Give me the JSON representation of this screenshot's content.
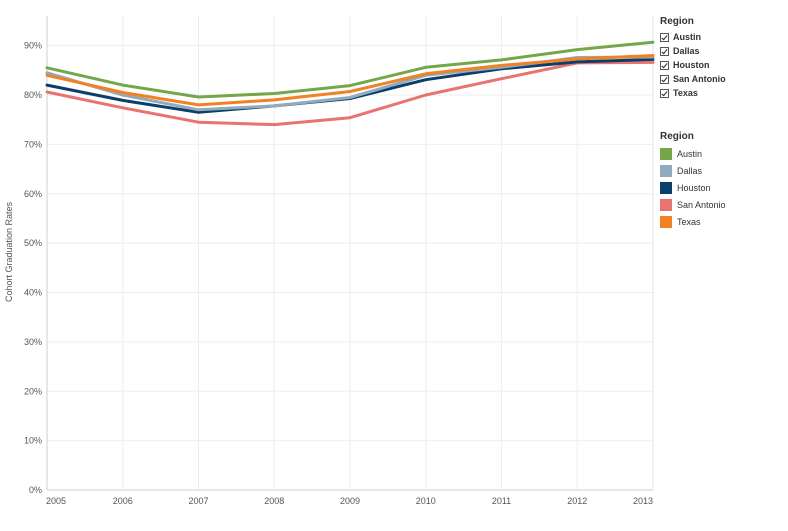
{
  "chart_data": {
    "type": "line",
    "title": "",
    "xlabel": "",
    "ylabel": "Cohort Graduation Rates",
    "x": [
      "2005",
      "2006",
      "2007",
      "2008",
      "2009",
      "2010",
      "2011",
      "2012",
      "2013"
    ],
    "ylim": [
      0,
      0.96
    ],
    "yticks": [
      0,
      0.1,
      0.2,
      0.3,
      0.4,
      0.5,
      0.6,
      0.7,
      0.8,
      0.9
    ],
    "ytick_labels": [
      "0%",
      "10%",
      "20%",
      "30%",
      "40%",
      "50%",
      "60%",
      "70%",
      "80%",
      "90%"
    ],
    "grid": true,
    "legend_placement": "right",
    "series": [
      {
        "name": "San Antonio",
        "color": "#e8736f",
        "values": [
          0.806,
          0.774,
          0.745,
          0.74,
          0.754,
          0.8,
          0.833,
          0.865,
          0.866
        ]
      },
      {
        "name": "Houston",
        "color": "#0a3f6b",
        "values": [
          0.82,
          0.789,
          0.765,
          0.778,
          0.793,
          0.831,
          0.853,
          0.867,
          0.872
        ]
      },
      {
        "name": "Dallas",
        "color": "#93a9bd",
        "values": [
          0.845,
          0.8,
          0.77,
          0.778,
          0.795,
          0.84,
          0.856,
          0.876,
          0.877
        ]
      },
      {
        "name": "Texas",
        "color": "#f08223",
        "values": [
          0.84,
          0.805,
          0.78,
          0.79,
          0.807,
          0.843,
          0.86,
          0.873,
          0.88
        ]
      },
      {
        "name": "Austin",
        "color": "#73a74a",
        "values": [
          0.855,
          0.82,
          0.796,
          0.803,
          0.819,
          0.856,
          0.871,
          0.892,
          0.907
        ]
      }
    ]
  },
  "filter_legend": {
    "title": "Region",
    "items": [
      "Austin",
      "Dallas",
      "Houston",
      "San Antonio",
      "Texas"
    ]
  },
  "color_legend": {
    "title": "Region",
    "items": [
      {
        "label": "Austin",
        "color": "#73a74a"
      },
      {
        "label": "Dallas",
        "color": "#93a9bd"
      },
      {
        "label": "Houston",
        "color": "#0a3f6b"
      },
      {
        "label": "San Antonio",
        "color": "#e8736f"
      },
      {
        "label": "Texas",
        "color": "#f08223"
      }
    ]
  }
}
